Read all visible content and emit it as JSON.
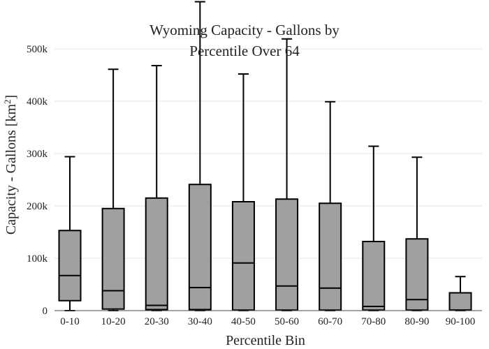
{
  "chart_data": {
    "type": "box",
    "title_lines": [
      "Wyoming Capacity - Gallons by",
      "Percentile Over 64"
    ],
    "xlabel": "Percentile Bin",
    "ylabel_main": "Capacity - Gallons  [km",
    "ylabel_sup": "2",
    "ylabel_end": "]",
    "ylim": [
      0,
      580000
    ],
    "y_ticks": [
      {
        "value": 0,
        "label": "0"
      },
      {
        "value": 100000,
        "label": "100k"
      },
      {
        "value": 200000,
        "label": "200k"
      },
      {
        "value": 300000,
        "label": "300k"
      },
      {
        "value": 400000,
        "label": "400k"
      },
      {
        "value": 500000,
        "label": "500k"
      }
    ],
    "grid": true,
    "box_color": "#a0a0a0",
    "categories": [
      "0-10",
      "10-20",
      "20-30",
      "30-40",
      "40-50",
      "50-60",
      "60-70",
      "70-80",
      "80-90",
      "90-100"
    ],
    "boxes": [
      {
        "min": 0,
        "q1": 19000,
        "median": 67000,
        "q3": 153000,
        "max": 294000
      },
      {
        "min": 0,
        "q1": 3000,
        "median": 38000,
        "q3": 195000,
        "max": 461000
      },
      {
        "min": 0,
        "q1": 2000,
        "median": 10000,
        "q3": 215000,
        "max": 468000
      },
      {
        "min": 0,
        "q1": 2000,
        "median": 44000,
        "q3": 241000,
        "max": 590000
      },
      {
        "min": 0,
        "q1": 1000,
        "median": 91000,
        "q3": 208000,
        "max": 452000
      },
      {
        "min": 0,
        "q1": 1000,
        "median": 47000,
        "q3": 213000,
        "max": 519000
      },
      {
        "min": 0,
        "q1": 1000,
        "median": 43000,
        "q3": 205000,
        "max": 399000
      },
      {
        "min": 0,
        "q1": 1000,
        "median": 8000,
        "q3": 132000,
        "max": 314000
      },
      {
        "min": 0,
        "q1": 1000,
        "median": 21000,
        "q3": 137000,
        "max": 293000
      },
      {
        "min": 0,
        "q1": 1000,
        "median": 1000,
        "q3": 34000,
        "max": 65000
      }
    ]
  }
}
